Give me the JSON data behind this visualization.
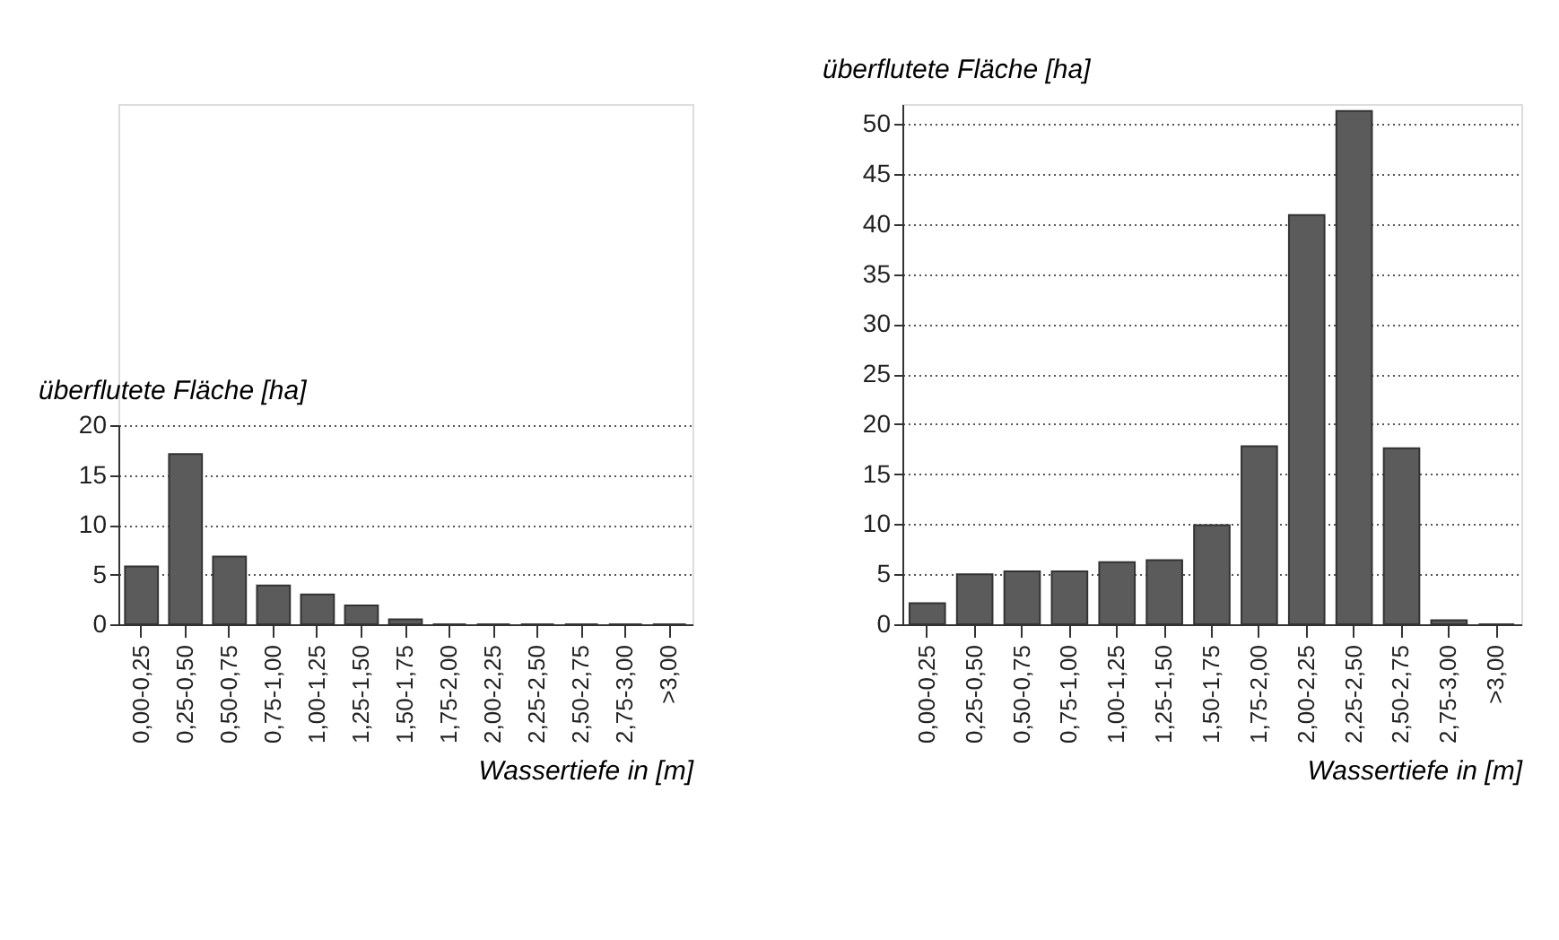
{
  "chart_data": [
    {
      "type": "bar",
      "ylabel": "überflutete Fläche [ha]",
      "xlabel": "Wassertiefe in [m]",
      "categories": [
        "0,00-0,25",
        "0,25-0,50",
        "0,50-0,75",
        "0,75-1,00",
        "1,00-1,25",
        "1,25-1,50",
        "1,50-1,75",
        "1,75-2,00",
        "2,00-2,25",
        "2,25-2,50",
        "2,50-2,75",
        "2,75-3,00",
        ">3,00"
      ],
      "values": [
        5.8,
        17.1,
        6.8,
        3.9,
        3.0,
        1.9,
        0.5,
        0,
        0,
        0,
        0,
        0,
        0
      ],
      "color": "#5b5b5b",
      "ylim": [
        0,
        20
      ],
      "yticks": [
        0,
        5,
        10,
        15,
        20
      ],
      "grid": "y"
    },
    {
      "type": "bar",
      "ylabel": "überflutete Fläche [ha]",
      "xlabel": "Wassertiefe in [m]",
      "categories": [
        "0,00-0,25",
        "0,25-0,50",
        "0,50-0,75",
        "0,75-1,00",
        "1,00-1,25",
        "1,25-1,50",
        "1,50-1,75",
        "1,75-2,00",
        "2,00-2,25",
        "2,25-2,50",
        "2,50-2,75",
        "2,75-3,00",
        ">3,00"
      ],
      "values": [
        2.1,
        5.0,
        5.3,
        5.3,
        6.2,
        6.4,
        9.9,
        17.8,
        40.9,
        51.3,
        17.6,
        0.4,
        0
      ],
      "color": "#5b5b5b",
      "ylim": [
        0,
        52
      ],
      "yticks": [
        0,
        5,
        10,
        15,
        20,
        25,
        30,
        35,
        40,
        45,
        50
      ],
      "grid": "y"
    }
  ]
}
